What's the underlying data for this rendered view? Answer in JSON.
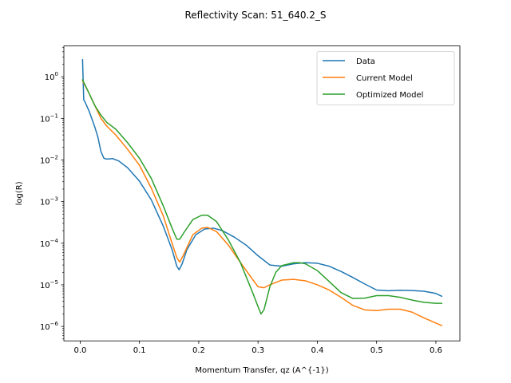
{
  "chart_data": {
    "type": "line",
    "title": "Reflectivity Scan: 51_640.2_S",
    "xlabel": "Momentum Transfer, qz (A^{-1})",
    "ylabel": "log(R)",
    "yscale": "log",
    "xlim": [
      -0.0275,
      0.6405
    ],
    "ylim": [
      4.5e-07,
      5.5
    ],
    "xticks": [
      0.0,
      0.1,
      0.2,
      0.3,
      0.4,
      0.5,
      0.6
    ],
    "xtick_labels": [
      "0.0",
      "0.1",
      "0.2",
      "0.3",
      "0.4",
      "0.5",
      "0.6"
    ],
    "yticks": [
      1e-06,
      1e-05,
      0.0001,
      0.001,
      0.01,
      0.1,
      1
    ],
    "ytick_labels": [
      {
        "base": "10",
        "exp": "−6"
      },
      {
        "base": "10",
        "exp": "−5"
      },
      {
        "base": "10",
        "exp": "−4"
      },
      {
        "base": "10",
        "exp": "−3"
      },
      {
        "base": "10",
        "exp": "−2"
      },
      {
        "base": "10",
        "exp": "−1"
      },
      {
        "base": "10",
        "exp": "0"
      }
    ],
    "grid": false,
    "legend_position": "top-right",
    "series": [
      {
        "name": "Data",
        "color": "#1f77b4",
        "x": [
          0.004,
          0.006,
          0.008,
          0.015,
          0.025,
          0.03,
          0.035,
          0.04,
          0.045,
          0.055,
          0.065,
          0.08,
          0.1,
          0.12,
          0.14,
          0.155,
          0.163,
          0.167,
          0.172,
          0.18,
          0.195,
          0.21,
          0.225,
          0.24,
          0.26,
          0.28,
          0.3,
          0.32,
          0.34,
          0.36,
          0.38,
          0.4,
          0.42,
          0.44,
          0.46,
          0.48,
          0.5,
          0.52,
          0.54,
          0.56,
          0.58,
          0.6,
          0.61
        ],
        "y": [
          2.6,
          0.28,
          0.25,
          0.15,
          0.06,
          0.035,
          0.016,
          0.011,
          0.0105,
          0.0108,
          0.0095,
          0.0065,
          0.0031,
          0.0011,
          0.00026,
          7e-05,
          2.8e-05,
          2.3e-05,
          3.2e-05,
          7e-05,
          0.00016,
          0.00022,
          0.00023,
          0.0002,
          0.00014,
          9e-05,
          5e-05,
          3e-05,
          2.8e-05,
          3.2e-05,
          3.4e-05,
          3.3e-05,
          2.8e-05,
          2.1e-05,
          1.5e-05,
          1.05e-05,
          7.5e-06,
          7.2e-06,
          7.4e-06,
          7.3e-06,
          7e-06,
          6.2e-06,
          5.3e-06
        ]
      },
      {
        "name": "Current Model",
        "color": "#ff7f0e",
        "x": [
          0.004,
          0.015,
          0.025,
          0.035,
          0.045,
          0.06,
          0.08,
          0.1,
          0.12,
          0.14,
          0.155,
          0.163,
          0.168,
          0.175,
          0.19,
          0.205,
          0.215,
          0.23,
          0.25,
          0.27,
          0.29,
          0.3,
          0.31,
          0.32,
          0.34,
          0.36,
          0.38,
          0.4,
          0.42,
          0.44,
          0.46,
          0.48,
          0.5,
          0.52,
          0.54,
          0.56,
          0.58,
          0.6,
          0.61
        ],
        "y": [
          0.8,
          0.4,
          0.2,
          0.1,
          0.065,
          0.04,
          0.018,
          0.0075,
          0.0021,
          0.00046,
          0.0001,
          4.5e-05,
          3.5e-05,
          5.5e-05,
          0.00016,
          0.00023,
          0.00024,
          0.00019,
          9e-05,
          3.5e-05,
          1.4e-05,
          9e-06,
          8.5e-06,
          1e-05,
          1.3e-05,
          1.35e-05,
          1.25e-05,
          1e-05,
          7.5e-06,
          5e-06,
          3.2e-06,
          2.5e-06,
          2.4e-06,
          2.6e-06,
          2.6e-06,
          2.2e-06,
          1.6e-06,
          1.2e-06,
          1.05e-06
        ]
      },
      {
        "name": "Optimized Model",
        "color": "#2ca02c",
        "x": [
          0.004,
          0.015,
          0.025,
          0.035,
          0.045,
          0.06,
          0.08,
          0.1,
          0.12,
          0.14,
          0.155,
          0.163,
          0.168,
          0.175,
          0.19,
          0.205,
          0.215,
          0.23,
          0.25,
          0.27,
          0.29,
          0.3,
          0.305,
          0.31,
          0.32,
          0.33,
          0.34,
          0.36,
          0.37,
          0.38,
          0.4,
          0.42,
          0.44,
          0.46,
          0.48,
          0.5,
          0.52,
          0.54,
          0.56,
          0.58,
          0.6,
          0.61
        ],
        "y": [
          0.85,
          0.4,
          0.2,
          0.12,
          0.08,
          0.055,
          0.026,
          0.011,
          0.0036,
          0.0008,
          0.00023,
          0.000125,
          0.000125,
          0.00018,
          0.00037,
          0.00047,
          0.00047,
          0.00033,
          0.00012,
          3.5e-05,
          7e-06,
          3e-06,
          2e-06,
          2.5e-06,
          9e-06,
          2e-05,
          2.9e-05,
          3.4e-05,
          3.4e-05,
          3.2e-05,
          2.2e-05,
          1.2e-05,
          6.5e-06,
          4.7e-06,
          4.8e-06,
          5.5e-06,
          5.5e-06,
          5e-06,
          4.3e-06,
          3.8e-06,
          3.6e-06,
          3.6e-06
        ]
      }
    ]
  }
}
